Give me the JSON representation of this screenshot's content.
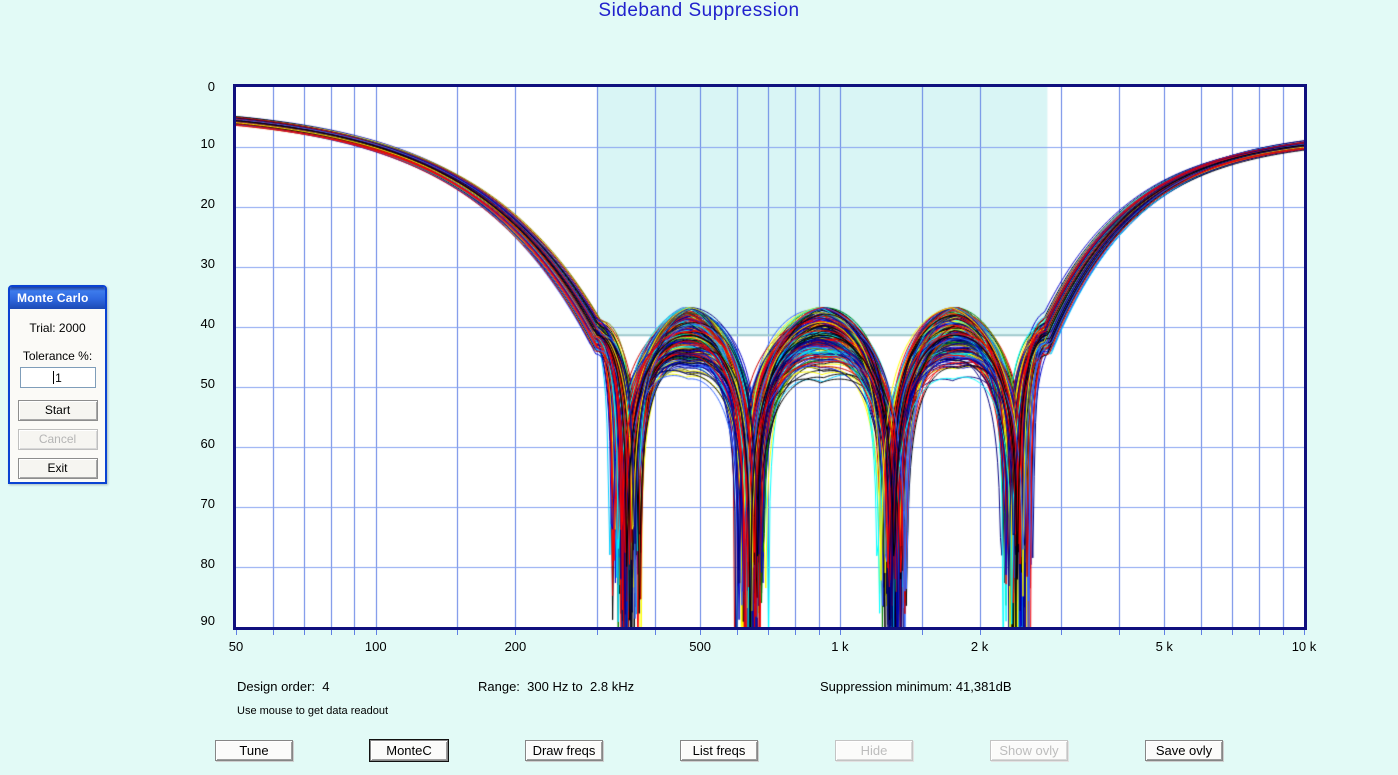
{
  "chart": {
    "title": "Sideband Suppression",
    "title_color": "#2121CD"
  },
  "chart_data": {
    "type": "line",
    "title": "Sideband Suppression",
    "x_axis": {
      "scale": "log",
      "min_hz": 50,
      "max_hz": 10000,
      "unit": "Hz",
      "tick_labels": [
        {
          "label": "50",
          "hz": 50
        },
        {
          "label": "100",
          "hz": 100
        },
        {
          "label": "200",
          "hz": 200
        },
        {
          "label": "500",
          "hz": 500
        },
        {
          "label": "1 k",
          "hz": 1000
        },
        {
          "label": "2 k",
          "hz": 2000
        },
        {
          "label": "5 k",
          "hz": 5000
        },
        {
          "label": "10 k",
          "hz": 10000
        }
      ]
    },
    "y_axis": {
      "min_db": 0,
      "max_db": 90,
      "inverted": true,
      "tick_step": 10,
      "ticks": [
        0,
        10,
        20,
        30,
        40,
        50,
        60,
        70,
        80,
        90
      ]
    },
    "gridlines": {
      "vertical_hz": [
        60,
        70,
        80,
        90,
        100,
        150,
        200,
        300,
        400,
        500,
        600,
        700,
        800,
        900,
        1000,
        1500,
        2000,
        3000,
        4000,
        5000,
        6000,
        7000,
        8000,
        9000
      ],
      "horizontal_db": [
        10,
        20,
        30,
        40,
        50,
        60,
        70,
        80
      ],
      "vertical_color": "#5F7FE4",
      "horizontal_color": "#86A2F0"
    },
    "spec_region": {
      "f_low_hz": 300,
      "f_high_hz": 2800,
      "level_db": 41.381,
      "fill": "#D9F5F5",
      "edge": "#9FC9CD"
    },
    "ensemble": {
      "description": "Monte Carlo trials of an order-4 band-stop suppression response",
      "trial_count": 2000,
      "trials_drawn": 230,
      "band_low_hz": 300,
      "band_high_hz": 2800,
      "notch_positions_t": [
        0.066,
        0.34,
        0.66,
        0.934
      ],
      "arch_positions_t": [
        0,
        0.203,
        0.5,
        0.797,
        1
      ],
      "arch_level_db": 41.381,
      "left_end_db": 5.6,
      "right_end_db": 9.7,
      "palette": [
        "#FFFF00",
        "#FF0000",
        "#0000CC",
        "#00CCFF",
        "#000000",
        "#000080",
        "#CC0000",
        "#00FFFF",
        "#3366FF",
        "#808000",
        "#008000",
        "#FFFF00",
        "#FF0000",
        "#0000CC",
        "#000000",
        "#000080"
      ]
    }
  },
  "info": {
    "design_order": "Design order:  4",
    "range": "Range:  300 Hz to  2.8 kHz",
    "suppression": "Suppression minimum: 41,381dB",
    "hint": "Use mouse to get data readout"
  },
  "toolbar": {
    "buttons": [
      {
        "id": "tune",
        "label": "Tune",
        "enabled": true,
        "focused": false
      },
      {
        "id": "montec",
        "label": "MonteC",
        "enabled": true,
        "focused": true
      },
      {
        "id": "draw-freqs",
        "label": "Draw freqs",
        "enabled": true,
        "focused": false
      },
      {
        "id": "list-freqs",
        "label": "List freqs",
        "enabled": true,
        "focused": false
      },
      {
        "id": "hide",
        "label": "Hide",
        "enabled": false,
        "focused": false
      },
      {
        "id": "show-ovly",
        "label": "Show ovly",
        "enabled": false,
        "focused": false
      },
      {
        "id": "save-ovly",
        "label": "Save ovly",
        "enabled": true,
        "focused": false
      }
    ]
  },
  "monte_carlo_dialog": {
    "title": "Monte Carlo",
    "trial_label": "Trial: 2000",
    "tolerance_label": "Tolerance %:",
    "tolerance_value": "1",
    "buttons": [
      {
        "id": "start",
        "label": "Start",
        "enabled": true
      },
      {
        "id": "cancel",
        "label": "Cancel",
        "enabled": false
      },
      {
        "id": "exit",
        "label": "Exit",
        "enabled": true
      }
    ]
  }
}
